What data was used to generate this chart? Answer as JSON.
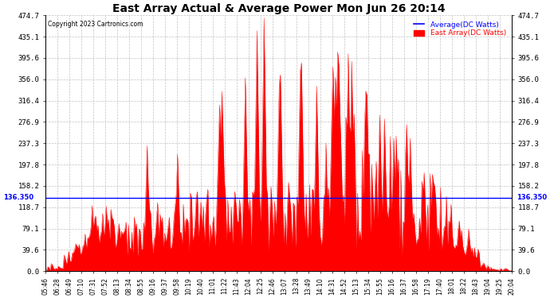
{
  "title": "East Array Actual & Average Power Mon Jun 26 20:14",
  "copyright": "Copyright 2023 Cartronics.com",
  "legend_avg": "Average(DC Watts)",
  "legend_east": "East Array(DC Watts)",
  "avg_line_value": 136.35,
  "avg_label": "136.350",
  "y_max": 474.7,
  "y_min": 0.0,
  "y_ticks": [
    0.0,
    39.6,
    79.1,
    118.7,
    158.2,
    197.8,
    237.3,
    276.9,
    316.4,
    356.0,
    395.6,
    435.1,
    474.7
  ],
  "x_labels": [
    "05:46",
    "06:28",
    "06:49",
    "07:10",
    "07:31",
    "07:52",
    "08:13",
    "08:34",
    "08:55",
    "09:16",
    "09:37",
    "09:58",
    "10:19",
    "10:40",
    "11:01",
    "11:22",
    "11:43",
    "12:04",
    "12:25",
    "12:46",
    "13:07",
    "13:28",
    "13:49",
    "14:10",
    "14:31",
    "14:52",
    "15:13",
    "15:34",
    "15:55",
    "16:16",
    "16:37",
    "16:58",
    "17:19",
    "17:40",
    "18:01",
    "18:22",
    "18:43",
    "19:04",
    "19:25",
    "20:04"
  ],
  "bg_color": "#ffffff",
  "grid_color": "#bbbbbb",
  "avg_line_color": "#0000ff",
  "east_fill_color": "#ff0000",
  "east_line_color": "#ff0000",
  "title_color": "#000000",
  "copyright_color": "#000000",
  "legend_avg_color": "#0000ff",
  "legend_east_color": "#ff0000"
}
